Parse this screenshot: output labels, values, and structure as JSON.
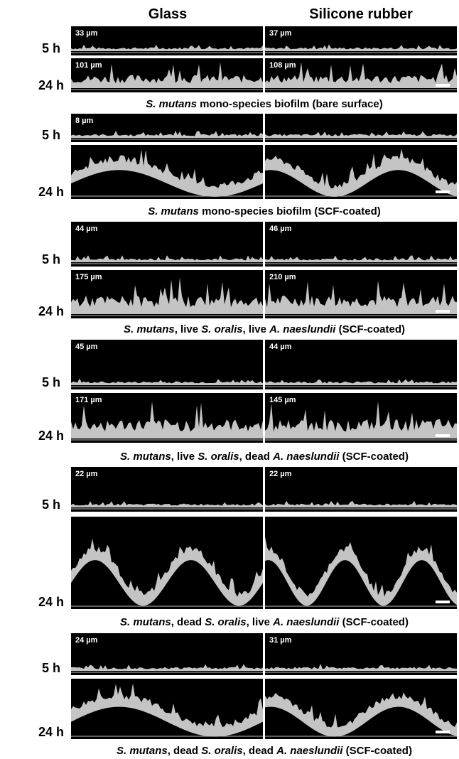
{
  "columns": [
    "Glass",
    "Silicone rubber"
  ],
  "groups": [
    {
      "rows": [
        {
          "label": "5 h",
          "panels": [
            {
              "depth": "33 µm"
            },
            {
              "depth": "37 µm"
            }
          ]
        },
        {
          "label": "24 h",
          "panels": [
            {
              "depth": "101 µm"
            },
            {
              "depth": "108 µm"
            }
          ]
        }
      ],
      "caption": [
        {
          "text": "S. mutans",
          "italic": true
        },
        {
          "text": " mono-species biofilm (bare surface)",
          "italic": false
        }
      ]
    },
    {
      "rows": [
        {
          "label": "5 h",
          "panels": [
            {
              "depth": "8 µm"
            },
            {
              "depth": null
            }
          ]
        },
        {
          "label": "24 h",
          "panels": [
            {
              "depth": null
            },
            {
              "depth": null
            }
          ]
        }
      ],
      "caption": [
        {
          "text": "S. mutans",
          "italic": true
        },
        {
          "text": " mono-species biofilm (SCF-coated)",
          "italic": false
        }
      ]
    },
    {
      "rows": [
        {
          "label": "5 h",
          "panels": [
            {
              "depth": "44 µm"
            },
            {
              "depth": "46 µm"
            }
          ]
        },
        {
          "label": "24 h",
          "panels": [
            {
              "depth": "175 µm"
            },
            {
              "depth": "210 µm"
            }
          ]
        }
      ],
      "caption": [
        {
          "text": "S. mutans",
          "italic": true
        },
        {
          "text": ", live ",
          "italic": false
        },
        {
          "text": "S. oralis",
          "italic": true
        },
        {
          "text": ", live ",
          "italic": false
        },
        {
          "text": "A. naeslundii",
          "italic": true
        },
        {
          "text": " (SCF-coated)",
          "italic": false
        }
      ]
    },
    {
      "rows": [
        {
          "label": "5 h",
          "panels": [
            {
              "depth": "45 µm"
            },
            {
              "depth": "44 µm"
            }
          ]
        },
        {
          "label": "24 h",
          "panels": [
            {
              "depth": "171 µm"
            },
            {
              "depth": "145 µm"
            }
          ]
        }
      ],
      "caption": [
        {
          "text": "S. mutans",
          "italic": true
        },
        {
          "text": ", live ",
          "italic": false
        },
        {
          "text": "S. oralis",
          "italic": true
        },
        {
          "text": ", dead ",
          "italic": false
        },
        {
          "text": "A. naeslundii",
          "italic": true
        },
        {
          "text": " (SCF-coated)",
          "italic": false
        }
      ]
    },
    {
      "rows": [
        {
          "label": "5 h",
          "panels": [
            {
              "depth": "22 µm"
            },
            {
              "depth": "22 µm"
            }
          ]
        },
        {
          "label": "24 h",
          "panels": [
            {
              "depth": null
            },
            {
              "depth": null
            }
          ]
        }
      ],
      "caption": [
        {
          "text": "S. mutans",
          "italic": true
        },
        {
          "text": ", dead ",
          "italic": false
        },
        {
          "text": "S. oralis",
          "italic": true
        },
        {
          "text": ", live ",
          "italic": false
        },
        {
          "text": "A. naeslundii",
          "italic": true
        },
        {
          "text": " (SCF-coated)",
          "italic": false
        }
      ]
    },
    {
      "rows": [
        {
          "label": "5 h",
          "panels": [
            {
              "depth": "24 µm"
            },
            {
              "depth": "31 µm"
            }
          ]
        },
        {
          "label": "24 h",
          "panels": [
            {
              "depth": null
            },
            {
              "depth": null
            }
          ]
        }
      ],
      "caption": [
        {
          "text": "S. mutans",
          "italic": true
        },
        {
          "text": ", dead ",
          "italic": false
        },
        {
          "text": "S. oralis",
          "italic": true
        },
        {
          "text": ", dead ",
          "italic": false
        },
        {
          "text": "A. naeslundii",
          "italic": true
        },
        {
          "text": " (SCF-coated)",
          "italic": false
        }
      ]
    }
  ]
}
